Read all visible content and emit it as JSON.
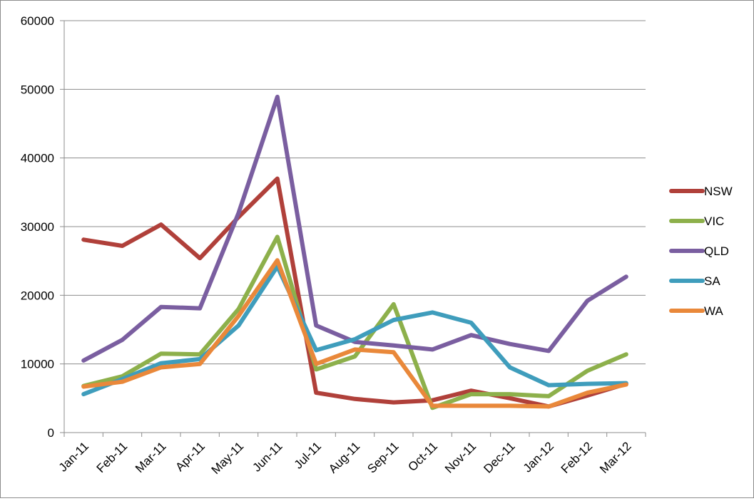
{
  "chart_data": {
    "type": "line",
    "title": "",
    "xlabel": "",
    "ylabel": "",
    "ylim": [
      0,
      60000
    ],
    "yticks": [
      0,
      10000,
      20000,
      30000,
      40000,
      50000,
      60000
    ],
    "grid": true,
    "legend_position": "right",
    "categories": [
      "Jan-11",
      "Feb-11",
      "Mar-11",
      "Apr-11",
      "May-11",
      "Jun-11",
      "Jul-11",
      "Aug-11",
      "Sep-11",
      "Oct-11",
      "Nov-11",
      "Dec-11",
      "Jan-12",
      "Feb-12",
      "Mar-12"
    ],
    "series": [
      {
        "name": "NSW",
        "color": "#b0403a",
        "values": [
          28100,
          27200,
          30300,
          25400,
          31400,
          37000,
          5800,
          4900,
          4400,
          4700,
          6100,
          5000,
          3800,
          5400,
          7100
        ]
      },
      {
        "name": "VIC",
        "color": "#8db04b",
        "values": [
          6800,
          8200,
          11500,
          11400,
          18000,
          28500,
          9200,
          11100,
          18700,
          3600,
          5600,
          5600,
          5300,
          9000,
          11400
        ]
      },
      {
        "name": "QLD",
        "color": "#7a5ea0",
        "values": [
          10500,
          13500,
          18300,
          18100,
          32000,
          48900,
          15600,
          13200,
          12700,
          12100,
          14200,
          12900,
          11900,
          19200,
          22700
        ]
      },
      {
        "name": "SA",
        "color": "#3f9dbc",
        "values": [
          5600,
          7800,
          10100,
          10700,
          15600,
          24200,
          12000,
          13600,
          16400,
          17500,
          16000,
          9500,
          6900,
          7100,
          7200
        ]
      },
      {
        "name": "WA",
        "color": "#e9883a",
        "values": [
          6700,
          7400,
          9500,
          10000,
          17000,
          25100,
          10000,
          12100,
          11700,
          3900,
          3900,
          3900,
          3800,
          5800,
          7000
        ]
      }
    ]
  }
}
